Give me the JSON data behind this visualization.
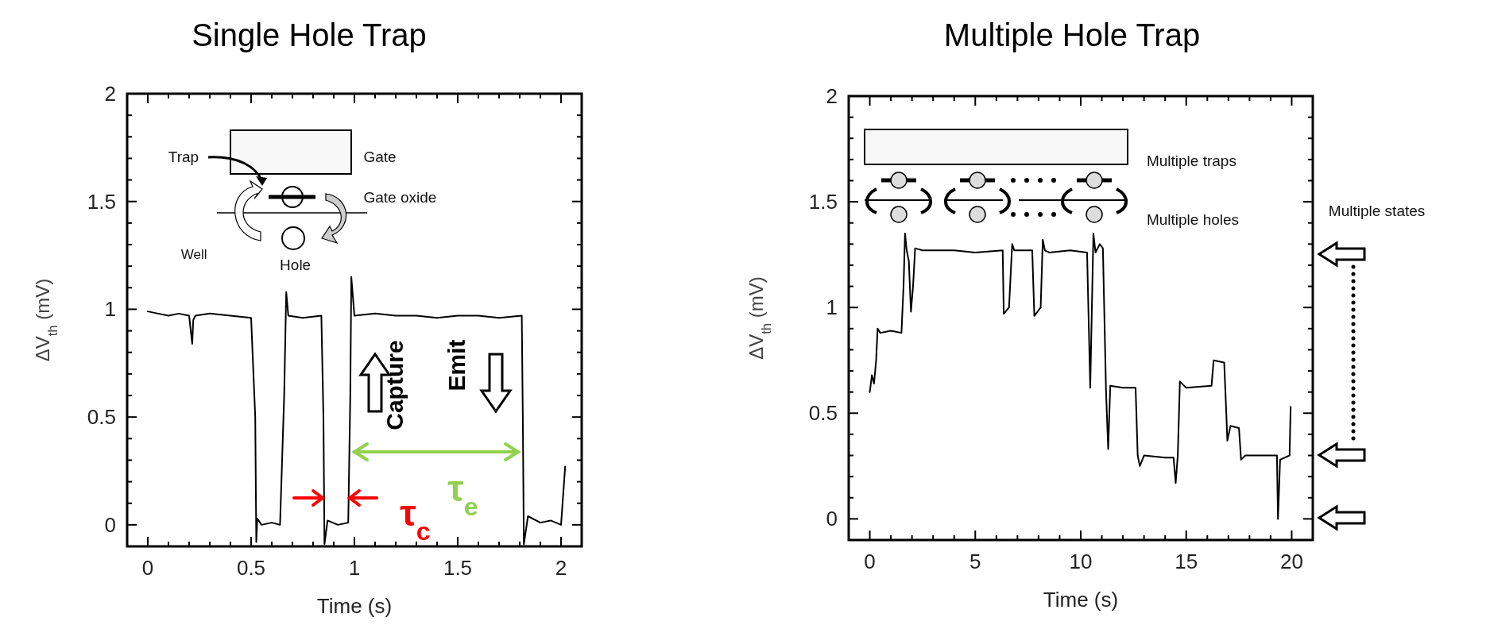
{
  "chart_data": [
    {
      "type": "line",
      "title": "Single Hole Trap",
      "xlabel": "Time (s)",
      "ylabel": "ΔV$_{th}$ (mV)",
      "xlim": [
        -0.1,
        2.1
      ],
      "ylim": [
        -0.1,
        2
      ],
      "xticks": [
        0,
        {
          "value": 0.1,
          "label": null
        },
        {
          "value": 0.2,
          "label": null
        },
        {
          "value": 0.3,
          "label": null
        },
        {
          "value": 0.4,
          "label": null
        },
        0.5,
        {
          "value": 0.6,
          "label": null
        },
        {
          "value": 0.7,
          "label": null
        },
        {
          "value": 0.8,
          "label": null
        },
        {
          "value": 0.9,
          "label": null
        },
        1,
        {
          "value": 1.1,
          "label": null
        },
        {
          "value": 1.2,
          "label": null
        },
        {
          "value": 1.3,
          "label": null
        },
        {
          "value": 1.4,
          "label": null
        },
        1.5,
        {
          "value": 1.6,
          "label": null
        },
        {
          "value": 1.7,
          "label": null
        },
        {
          "value": 1.8,
          "label": null
        },
        {
          "value": 1.9,
          "label": null
        },
        2
      ],
      "yticks": [
        0,
        {
          "value": 0.1,
          "label": null
        },
        {
          "value": 0.2,
          "label": null
        },
        {
          "value": 0.3,
          "label": null
        },
        {
          "value": 0.4,
          "label": null
        },
        0.5,
        {
          "value": 0.6,
          "label": null
        },
        {
          "value": 0.7,
          "label": null
        },
        {
          "value": 0.8,
          "label": null
        },
        {
          "value": 0.9,
          "label": null
        },
        1,
        {
          "value": 1.1,
          "label": null
        },
        {
          "value": 1.2,
          "label": null
        },
        {
          "value": 1.3,
          "label": null
        },
        {
          "value": 1.4,
          "label": null
        },
        1.5,
        {
          "value": 1.6,
          "label": null
        },
        {
          "value": 1.7,
          "label": null
        },
        {
          "value": 1.8,
          "label": null
        },
        {
          "value": 1.9,
          "label": null
        },
        2
      ],
      "series": [
        {
          "color": "#000000",
          "x": [
            0,
            0.05,
            0.1,
            0.15,
            0.2,
            0.215,
            0.22,
            0.23,
            0.3,
            0.4,
            0.5,
            0.52,
            0.525,
            0.53,
            0.55,
            0.6,
            0.64,
            0.66,
            0.67,
            0.68,
            0.75,
            0.84,
            0.85,
            0.855,
            0.87,
            0.92,
            0.97,
            0.98,
            0.985,
            1.0,
            1.1,
            1.2,
            1.3,
            1.4,
            1.5,
            1.6,
            1.7,
            1.81,
            1.815,
            1.82,
            1.84,
            1.9,
            1.95,
            2.0,
            2.02
          ],
          "values": [
            0.99,
            0.98,
            0.97,
            0.98,
            0.97,
            0.84,
            0.95,
            0.97,
            0.98,
            0.97,
            0.96,
            0.5,
            -0.08,
            0.03,
            0.0,
            0.01,
            0.0,
            0.6,
            1.08,
            0.97,
            0.96,
            0.97,
            0.5,
            -0.09,
            0.02,
            0.0,
            0.01,
            0.6,
            1.15,
            0.97,
            0.98,
            0.97,
            0.97,
            0.96,
            0.97,
            0.97,
            0.96,
            0.97,
            0.5,
            -0.09,
            0.04,
            0.01,
            0.02,
            0.0,
            0.27
          ]
        }
      ],
      "annotations": [
        "Trap",
        "Gate",
        "Gate oxide",
        "Well",
        "Hole",
        "Capture",
        "Emit",
        "τ$_{c}$",
        "τ$_{e}$"
      ]
    },
    {
      "type": "line",
      "title": "Multiple Hole Trap",
      "xlabel": "Time (s)",
      "ylabel": "ΔV$_{th}$ (mV)",
      "xlim": [
        -1,
        21
      ],
      "ylim": [
        -0.1,
        2
      ],
      "xticks": [
        0,
        {
          "value": 1,
          "label": null
        },
        {
          "value": 2,
          "label": null
        },
        {
          "value": 3,
          "label": null
        },
        {
          "value": 4,
          "label": null
        },
        5,
        {
          "value": 6,
          "label": null
        },
        {
          "value": 7,
          "label": null
        },
        {
          "value": 8,
          "label": null
        },
        {
          "value": 9,
          "label": null
        },
        10,
        {
          "value": 11,
          "label": null
        },
        {
          "value": 12,
          "label": null
        },
        {
          "value": 13,
          "label": null
        },
        {
          "value": 14,
          "label": null
        },
        15,
        {
          "value": 16,
          "label": null
        },
        {
          "value": 17,
          "label": null
        },
        {
          "value": 18,
          "label": null
        },
        {
          "value": 19,
          "label": null
        },
        20
      ],
      "yticks": [
        0,
        {
          "value": 0.1,
          "label": null
        },
        {
          "value": 0.2,
          "label": null
        },
        {
          "value": 0.3,
          "label": null
        },
        {
          "value": 0.4,
          "label": null
        },
        0.5,
        {
          "value": 0.6,
          "label": null
        },
        {
          "value": 0.7,
          "label": null
        },
        {
          "value": 0.8,
          "label": null
        },
        {
          "value": 0.9,
          "label": null
        },
        1,
        {
          "value": 1.1,
          "label": null
        },
        {
          "value": 1.2,
          "label": null
        },
        {
          "value": 1.3,
          "label": null
        },
        {
          "value": 1.4,
          "label": null
        },
        1.5,
        {
          "value": 1.6,
          "label": null
        },
        {
          "value": 1.7,
          "label": null
        },
        {
          "value": 1.8,
          "label": null
        },
        {
          "value": 1.9,
          "label": null
        },
        2
      ],
      "series": [
        {
          "color": "#000000",
          "x": [
            0,
            0.1,
            0.2,
            0.3,
            0.37,
            0.5,
            1.0,
            1.5,
            1.6,
            1.67,
            1.75,
            1.85,
            1.95,
            2.05,
            2.15,
            2.5,
            4,
            5,
            6.3,
            6.35,
            6.6,
            6.75,
            6.85,
            7.0,
            7.7,
            7.8,
            8.1,
            8.2,
            8.3,
            8.5,
            9.5,
            10.3,
            10.45,
            10.6,
            10.7,
            10.9,
            11.05,
            11.2,
            11.3,
            11.4,
            12.0,
            12.6,
            12.7,
            12.8,
            13.0,
            14.0,
            14.4,
            14.5,
            14.6,
            14.7,
            15.0,
            16.2,
            16.3,
            16.8,
            16.9,
            16.95,
            17.1,
            17.5,
            17.6,
            17.8,
            18.5,
            19.3,
            19.35,
            19.45,
            19.9,
            19.95
          ],
          "values": [
            0.6,
            0.68,
            0.64,
            0.75,
            0.9,
            0.88,
            0.89,
            0.88,
            1.1,
            1.35,
            1.27,
            1.22,
            0.98,
            1.1,
            1.28,
            1.27,
            1.27,
            1.26,
            1.27,
            0.97,
            1.0,
            1.3,
            1.27,
            1.27,
            1.27,
            0.96,
            1.0,
            1.32,
            1.27,
            1.26,
            1.27,
            1.26,
            0.62,
            1.35,
            1.26,
            1.3,
            1.28,
            0.6,
            0.33,
            0.63,
            0.62,
            0.62,
            0.3,
            0.25,
            0.3,
            0.29,
            0.29,
            0.17,
            0.3,
            0.65,
            0.62,
            0.63,
            0.75,
            0.74,
            0.5,
            0.37,
            0.44,
            0.43,
            0.28,
            0.3,
            0.3,
            0.3,
            0.0,
            0.28,
            0.3,
            0.53
          ]
        }
      ],
      "annotations": [
        "Multiple traps",
        "Multiple holes",
        "Multiple states"
      ]
    }
  ]
}
